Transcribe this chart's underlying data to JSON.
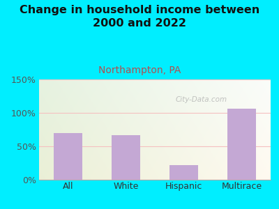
{
  "title": "Change in household income between\n2000 and 2022",
  "subtitle": "Northampton, PA",
  "categories": [
    "All",
    "White",
    "Hispanic",
    "Multirace"
  ],
  "values": [
    70,
    67,
    22,
    106
  ],
  "bar_color": "#c4a8d4",
  "title_fontsize": 11.5,
  "subtitle_fontsize": 10,
  "subtitle_color": "#b05050",
  "tick_label_fontsize": 9,
  "ytick_color": "#555555",
  "xtick_color": "#333333",
  "ylim": [
    0,
    150
  ],
  "yticks": [
    0,
    50,
    100,
    150
  ],
  "ytick_labels": [
    "0%",
    "50%",
    "100%",
    "150%"
  ],
  "bg_outer": "#00eeff",
  "bg_plot_color_topleft": "#e6f5e4",
  "bg_plot_color_topright": "#f0f8f0",
  "bg_plot_color_bottomleft": "#daf0da",
  "bg_plot_color_bottomright": "#f8fef8",
  "grid_color": "#f5c0c0",
  "watermark": "City-Data.com"
}
